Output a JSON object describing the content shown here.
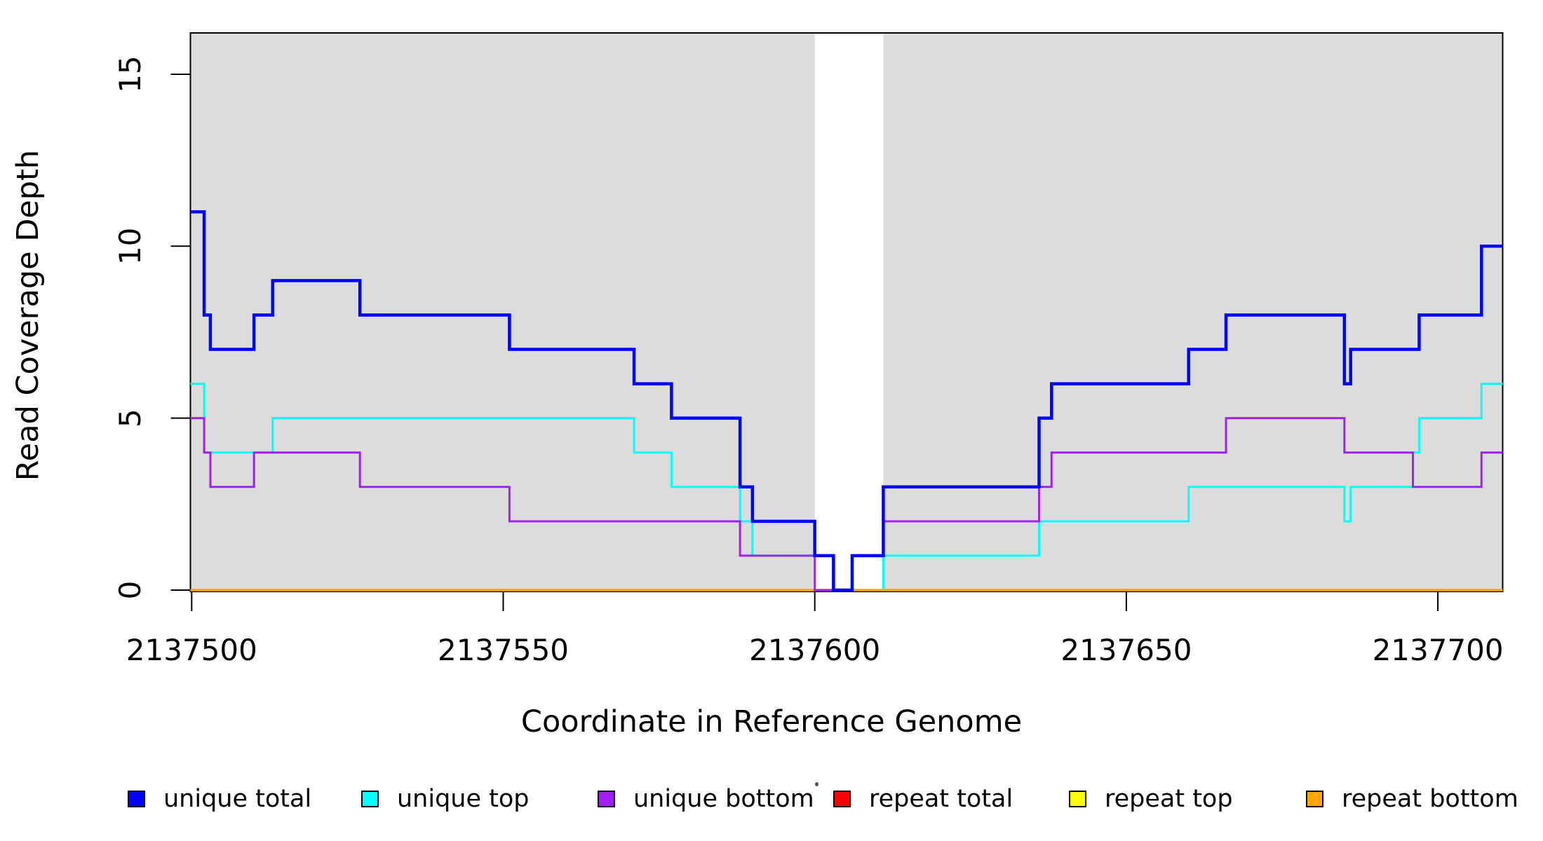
{
  "chart_data": {
    "type": "line",
    "subtype": "step",
    "title": "",
    "xlabel": "Coordinate in Reference Genome",
    "ylabel": "Read Coverage Depth",
    "xlim": [
      2137500,
      2137710
    ],
    "ylim": [
      0,
      16.2
    ],
    "x_ticks": [
      2137500,
      2137550,
      2137600,
      2137650,
      2137700
    ],
    "y_ticks": [
      0,
      5,
      10,
      15
    ],
    "grid": false,
    "legend_position": "bottom",
    "background_shading": {
      "color": "#dcdcdc",
      "regions": [
        [
          2137500,
          2137600
        ],
        [
          2137611,
          2137710
        ]
      ],
      "gap_region": [
        2137600,
        2137611
      ]
    },
    "series": [
      {
        "name": "unique total",
        "color": "#0000ff",
        "line_width": 4.5,
        "steps": [
          [
            2137500,
            11
          ],
          [
            2137502,
            8
          ],
          [
            2137503,
            7
          ],
          [
            2137510,
            8
          ],
          [
            2137513,
            9
          ],
          [
            2137527,
            8
          ],
          [
            2137551,
            7
          ],
          [
            2137571,
            6
          ],
          [
            2137577,
            5
          ],
          [
            2137588,
            3
          ],
          [
            2137590,
            2
          ],
          [
            2137600,
            1
          ],
          [
            2137603,
            0
          ],
          [
            2137606,
            1
          ],
          [
            2137611,
            3
          ],
          [
            2137636,
            5
          ],
          [
            2137638,
            6
          ],
          [
            2137660,
            7
          ],
          [
            2137666,
            8
          ],
          [
            2137685,
            6
          ],
          [
            2137686,
            7
          ],
          [
            2137697,
            8
          ],
          [
            2137707,
            10
          ],
          [
            2137710,
            10
          ]
        ]
      },
      {
        "name": "unique top",
        "color": "#00ffff",
        "line_width": 3,
        "steps": [
          [
            2137500,
            6
          ],
          [
            2137502,
            4
          ],
          [
            2137513,
            5
          ],
          [
            2137571,
            4
          ],
          [
            2137577,
            3
          ],
          [
            2137588,
            2
          ],
          [
            2137590,
            1
          ],
          [
            2137603,
            0
          ],
          [
            2137611,
            1
          ],
          [
            2137636,
            2
          ],
          [
            2137660,
            3
          ],
          [
            2137685,
            2
          ],
          [
            2137686,
            3
          ],
          [
            2137696,
            4
          ],
          [
            2137697,
            5
          ],
          [
            2137707,
            6
          ],
          [
            2137710,
            6
          ]
        ]
      },
      {
        "name": "unique bottom",
        "color": "#a020f0",
        "line_width": 3,
        "steps": [
          [
            2137500,
            5
          ],
          [
            2137502,
            4
          ],
          [
            2137503,
            3
          ],
          [
            2137510,
            4
          ],
          [
            2137527,
            3
          ],
          [
            2137551,
            2
          ],
          [
            2137588,
            1
          ],
          [
            2137600,
            0
          ],
          [
            2137606,
            1
          ],
          [
            2137611,
            2
          ],
          [
            2137636,
            3
          ],
          [
            2137638,
            4
          ],
          [
            2137666,
            5
          ],
          [
            2137685,
            4
          ],
          [
            2137696,
            3
          ],
          [
            2137707,
            4
          ],
          [
            2137710,
            4
          ]
        ]
      },
      {
        "name": "repeat total",
        "color": "#ff0000",
        "line_width": 3,
        "steps": [
          [
            2137500,
            0
          ],
          [
            2137710,
            0
          ]
        ]
      },
      {
        "name": "repeat top",
        "color": "#ffff00",
        "line_width": 3,
        "steps": [
          [
            2137500,
            0
          ],
          [
            2137710,
            0
          ]
        ]
      },
      {
        "name": "repeat bottom",
        "color": "#ffa500",
        "line_width": 3.5,
        "steps": [
          [
            2137500,
            0
          ],
          [
            2137710,
            0
          ]
        ]
      }
    ]
  }
}
